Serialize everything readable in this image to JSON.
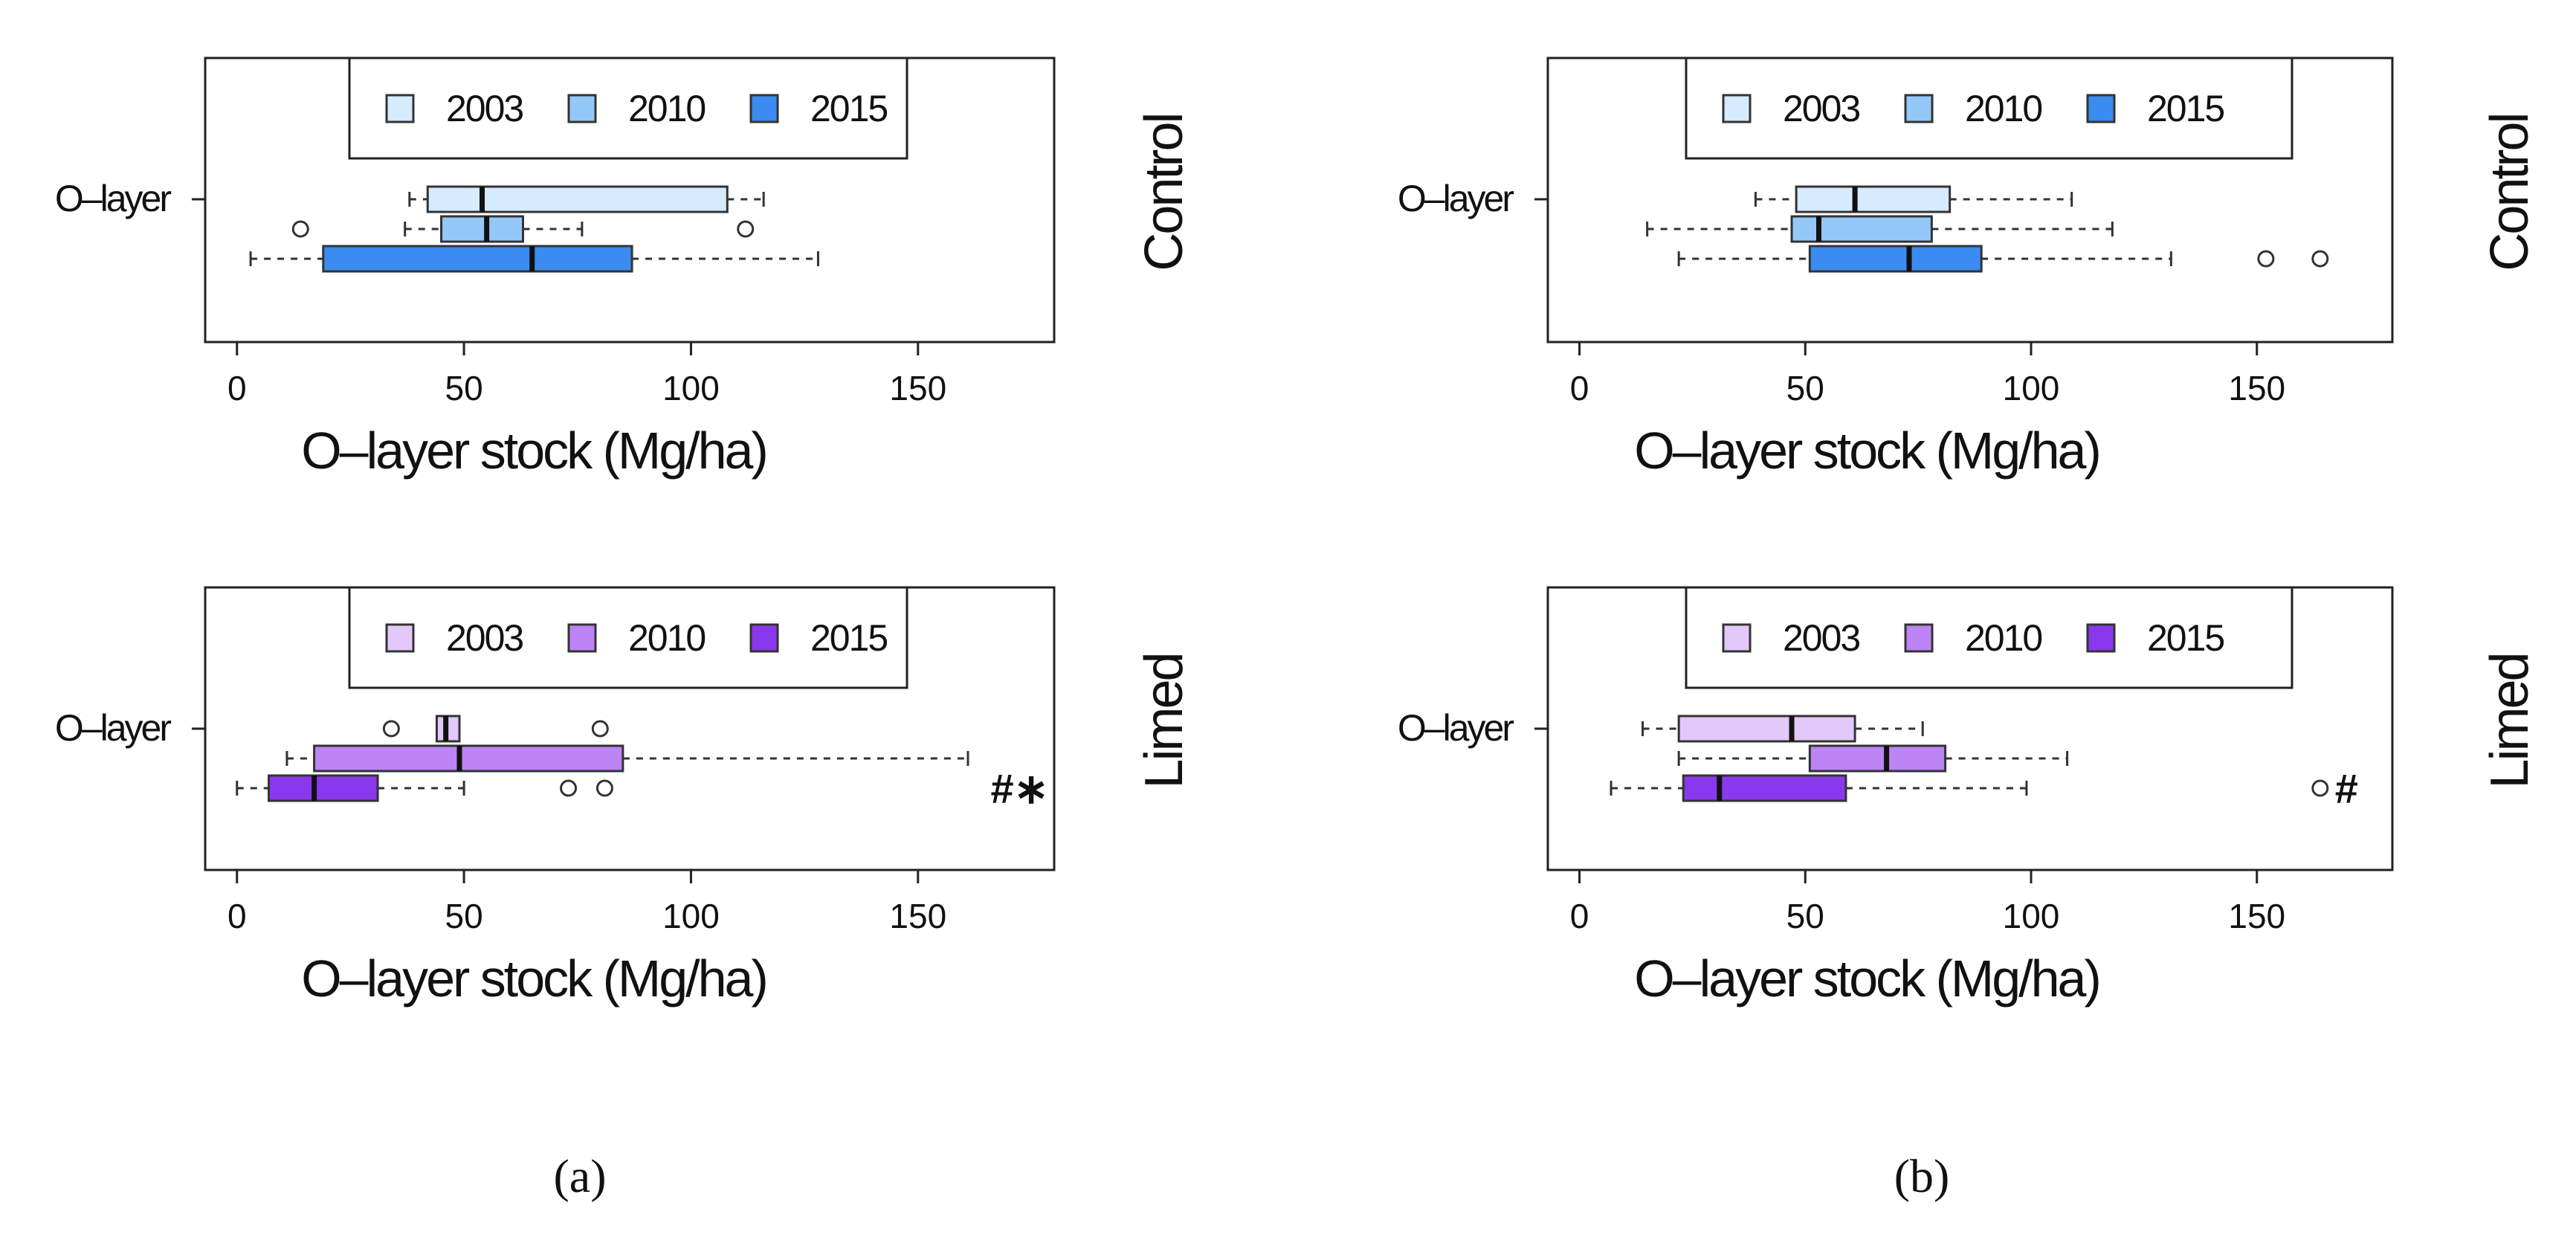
{
  "chart_data": [
    {
      "id": "a-control",
      "type": "boxplot",
      "subfigure": "a",
      "side_label": "Control",
      "xlabel": "O–layer stock (Mg/ha)",
      "ylabel": "O–layer",
      "xlim": [
        -7,
        180
      ],
      "xticks": [
        "0",
        "50",
        "100",
        "150"
      ],
      "xtick_values": [
        0,
        50,
        100,
        150
      ],
      "legend": [
        {
          "label": "2003",
          "color": "#d6ebfd"
        },
        {
          "label": "2010",
          "color": "#94c8f8"
        },
        {
          "label": "2015",
          "color": "#3b8cf0"
        }
      ],
      "series": [
        {
          "name": "2003",
          "min": 38,
          "q1": 42,
          "median": 54,
          "q3": 108,
          "max": 116,
          "outliers": []
        },
        {
          "name": "2010",
          "min": 37,
          "q1": 45,
          "median": 55,
          "q3": 63,
          "max": 76,
          "outliers": [
            14,
            112
          ]
        },
        {
          "name": "2015",
          "min": 3,
          "q1": 19,
          "median": 65,
          "q3": 87,
          "max": 128,
          "outliers": []
        }
      ],
      "annotation": ""
    },
    {
      "id": "b-control",
      "type": "boxplot",
      "subfigure": "b",
      "side_label": "Control",
      "xlabel": "O–layer stock (Mg/ha)",
      "ylabel": "O–layer",
      "xlim": [
        -7,
        180
      ],
      "xticks": [
        "0",
        "50",
        "100",
        "150"
      ],
      "xtick_values": [
        0,
        50,
        100,
        150
      ],
      "legend": [
        {
          "label": "2003",
          "color": "#d6ebfd"
        },
        {
          "label": "2010",
          "color": "#94c8f8"
        },
        {
          "label": "2015",
          "color": "#3b8cf0"
        }
      ],
      "series": [
        {
          "name": "2003",
          "min": 39,
          "q1": 48,
          "median": 61,
          "q3": 82,
          "max": 109,
          "outliers": []
        },
        {
          "name": "2010",
          "min": 15,
          "q1": 47,
          "median": 53,
          "q3": 78,
          "max": 118,
          "outliers": []
        },
        {
          "name": "2015",
          "min": 22,
          "q1": 51,
          "median": 73,
          "q3": 89,
          "max": 131,
          "outliers": [
            152,
            164
          ]
        }
      ],
      "annotation": ""
    },
    {
      "id": "a-limed",
      "type": "boxplot",
      "subfigure": "a",
      "side_label": "Limed",
      "xlabel": "O–layer stock (Mg/ha)",
      "ylabel": "O–layer",
      "xlim": [
        -7,
        180
      ],
      "xticks": [
        "0",
        "50",
        "100",
        "150"
      ],
      "xtick_values": [
        0,
        50,
        100,
        150
      ],
      "legend": [
        {
          "label": "2003",
          "color": "#e3c8fb"
        },
        {
          "label": "2010",
          "color": "#bc84f5"
        },
        {
          "label": "2015",
          "color": "#8a38ee"
        }
      ],
      "series": [
        {
          "name": "2003",
          "min": 44,
          "q1": 44,
          "median": 46,
          "q3": 49,
          "max": 49,
          "outliers": [
            34,
            80
          ]
        },
        {
          "name": "2010",
          "min": 11,
          "q1": 17,
          "median": 49,
          "q3": 85,
          "max": 161,
          "outliers": []
        },
        {
          "name": "2015",
          "min": 0,
          "q1": 7,
          "median": 17,
          "q3": 31,
          "max": 50,
          "outliers": [
            73,
            81
          ]
        }
      ],
      "annotation": "#∗"
    },
    {
      "id": "b-limed",
      "type": "boxplot",
      "subfigure": "b",
      "side_label": "Limed",
      "xlabel": "O–layer stock (Mg/ha)",
      "ylabel": "O–layer",
      "xlim": [
        -7,
        180
      ],
      "xticks": [
        "0",
        "50",
        "100",
        "150"
      ],
      "xtick_values": [
        0,
        50,
        100,
        150
      ],
      "legend": [
        {
          "label": "2003",
          "color": "#e3c8fb"
        },
        {
          "label": "2010",
          "color": "#bc84f5"
        },
        {
          "label": "2015",
          "color": "#8a38ee"
        }
      ],
      "series": [
        {
          "name": "2003",
          "min": 14,
          "q1": 22,
          "median": 47,
          "q3": 61,
          "max": 76,
          "outliers": []
        },
        {
          "name": "2010",
          "min": 22,
          "q1": 51,
          "median": 68,
          "q3": 81,
          "max": 108,
          "outliers": []
        },
        {
          "name": "2015",
          "min": 7,
          "q1": 23,
          "median": 31,
          "q3": 59,
          "max": 99,
          "outliers": [
            164
          ]
        }
      ],
      "annotation": "#"
    }
  ],
  "subfigure_labels": [
    "(a)",
    "(b)"
  ]
}
